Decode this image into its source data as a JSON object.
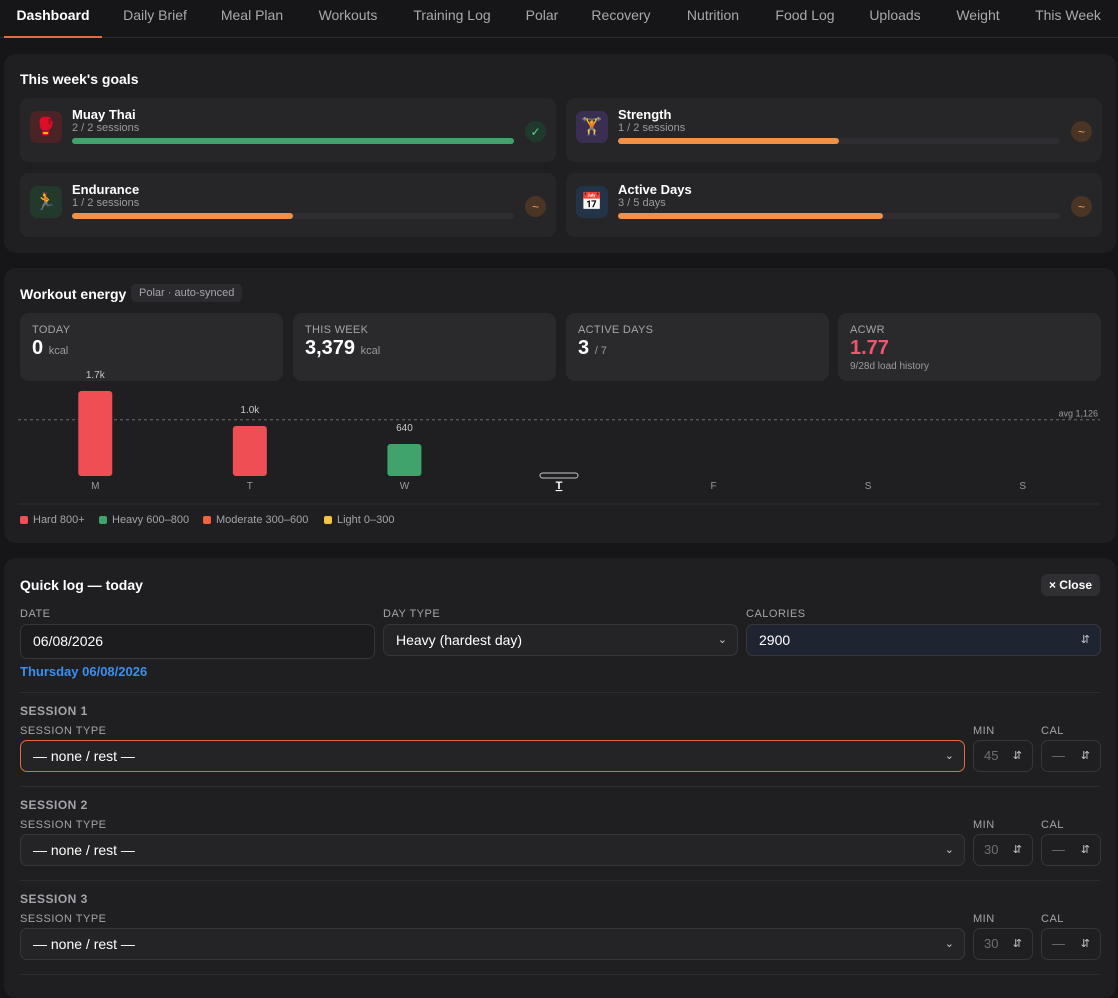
{
  "tabs": [
    "Dashboard",
    "Daily Brief",
    "Meal Plan",
    "Workouts",
    "Training Log",
    "Polar",
    "Recovery",
    "Nutrition",
    "Food Log",
    "Uploads",
    "Weight",
    "This Week"
  ],
  "goals": {
    "title": "This week's goals",
    "items": [
      {
        "name": "Muay Thai",
        "sub": "2 / 2 sessions",
        "icon": "boxing-glove-icon",
        "glyph": "🥊",
        "progress": 1.0,
        "color": "#3fa36b",
        "badge": "✓",
        "status": "complete"
      },
      {
        "name": "Strength",
        "sub": "1 / 2 sessions",
        "icon": "weightlifter-icon",
        "glyph": "🏋",
        "progress": 0.5,
        "color": "#f0914a",
        "badge": "~",
        "status": "partial"
      },
      {
        "name": "Endurance",
        "sub": "1 / 2 sessions",
        "icon": "runner-icon",
        "glyph": "🏃",
        "progress": 0.5,
        "color": "#f0914a",
        "badge": "~",
        "status": "partial"
      },
      {
        "name": "Active Days",
        "sub": "3 / 5 days",
        "icon": "calendar-icon",
        "glyph": "📅",
        "progress": 0.6,
        "color": "#f0914a",
        "badge": "~",
        "status": "partial"
      }
    ]
  },
  "energy": {
    "title": "Workout energy",
    "source": "Polar · auto-synced",
    "stats": [
      {
        "label": "TODAY",
        "value": "0",
        "unit": "kcal",
        "sub": "",
        "color": "#ffffff"
      },
      {
        "label": "THIS WEEK",
        "value": "3,379",
        "unit": "kcal",
        "sub": "",
        "color": "#ffffff"
      },
      {
        "label": "ACTIVE DAYS",
        "value": "3",
        "unit": "/ 7",
        "sub": "",
        "color": "#ffffff"
      },
      {
        "label": "ACWR",
        "value": "1.77",
        "unit": "",
        "sub": "9/28d load history",
        "color": "#f0566e"
      }
    ],
    "legend": [
      {
        "label": "Hard 800+",
        "color": "#f04e55"
      },
      {
        "label": "Heavy 600–800",
        "color": "#3fa36b"
      },
      {
        "label": "Moderate 300–600",
        "color": "#f0643c"
      },
      {
        "label": "Light 0–300",
        "color": "#f2c443"
      }
    ]
  },
  "chart_data": {
    "type": "bar",
    "categories": [
      "M",
      "T",
      "W",
      "T",
      "F",
      "S",
      "S"
    ],
    "values": [
      1700,
      1000,
      640,
      0,
      null,
      null,
      null
    ],
    "value_labels": [
      "1.7k",
      "1.0k",
      "640",
      "",
      "",
      "",
      ""
    ],
    "colors": [
      "#f04e55",
      "#f04e55",
      "#3fa36b",
      "#1f1f22",
      "",
      "",
      ""
    ],
    "today_index": 3,
    "average": 1126,
    "average_label": "avg 1,126",
    "ylim": [
      0,
      2300
    ]
  },
  "quicklog": {
    "title": "Quick log — today",
    "close_label": "× Close",
    "date_label": "DATE",
    "date_value": "06/08/2026",
    "date_hint": "Thursday 06/08/2026",
    "daytype_label": "DAY TYPE",
    "daytype_value": "Heavy (hardest day)",
    "calories_label": "CALORIES",
    "calories_value": "2900",
    "sessions": [
      {
        "title": "SESSION 1",
        "type_label": "SESSION TYPE",
        "type_value": "— none / rest —",
        "min_label": "MIN",
        "min_value": "45",
        "cal_label": "CAL",
        "cal_value": "—"
      },
      {
        "title": "SESSION 2",
        "type_label": "SESSION TYPE",
        "type_value": "— none / rest —",
        "min_label": "MIN",
        "min_value": "30",
        "cal_label": "CAL",
        "cal_value": "—"
      },
      {
        "title": "SESSION 3",
        "type_label": "SESSION TYPE",
        "type_value": "— none / rest —",
        "min_label": "MIN",
        "min_value": "30",
        "cal_label": "CAL",
        "cal_value": "—"
      }
    ]
  }
}
